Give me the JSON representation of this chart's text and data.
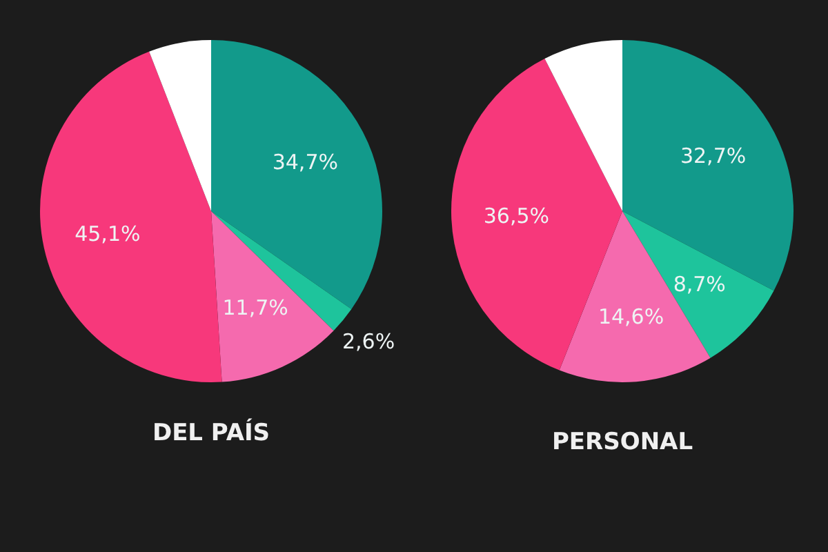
{
  "chart_data": [
    {
      "type": "pie",
      "title": "DEL PAÍS",
      "categories": [
        null,
        null,
        null,
        null,
        null
      ],
      "values": [
        34.7,
        2.6,
        11.7,
        45.1,
        5.9
      ],
      "colors": [
        "#129a8b",
        "#1ec49c",
        "#f56aae",
        "#f7387b",
        "#ffffff"
      ],
      "value_labels": [
        "34,7%",
        "2,6%",
        "11,7%",
        "45,1%",
        null
      ]
    },
    {
      "type": "pie",
      "title": "PERSONAL",
      "categories": [
        null,
        null,
        null,
        null,
        null
      ],
      "values": [
        32.7,
        8.7,
        14.6,
        36.5,
        7.5
      ],
      "colors": [
        "#129a8b",
        "#1ec49c",
        "#f56aae",
        "#f7387b",
        "#ffffff"
      ],
      "value_labels": [
        "32,7%",
        "8,7%",
        "14,6%",
        "36,5%",
        null
      ]
    }
  ]
}
